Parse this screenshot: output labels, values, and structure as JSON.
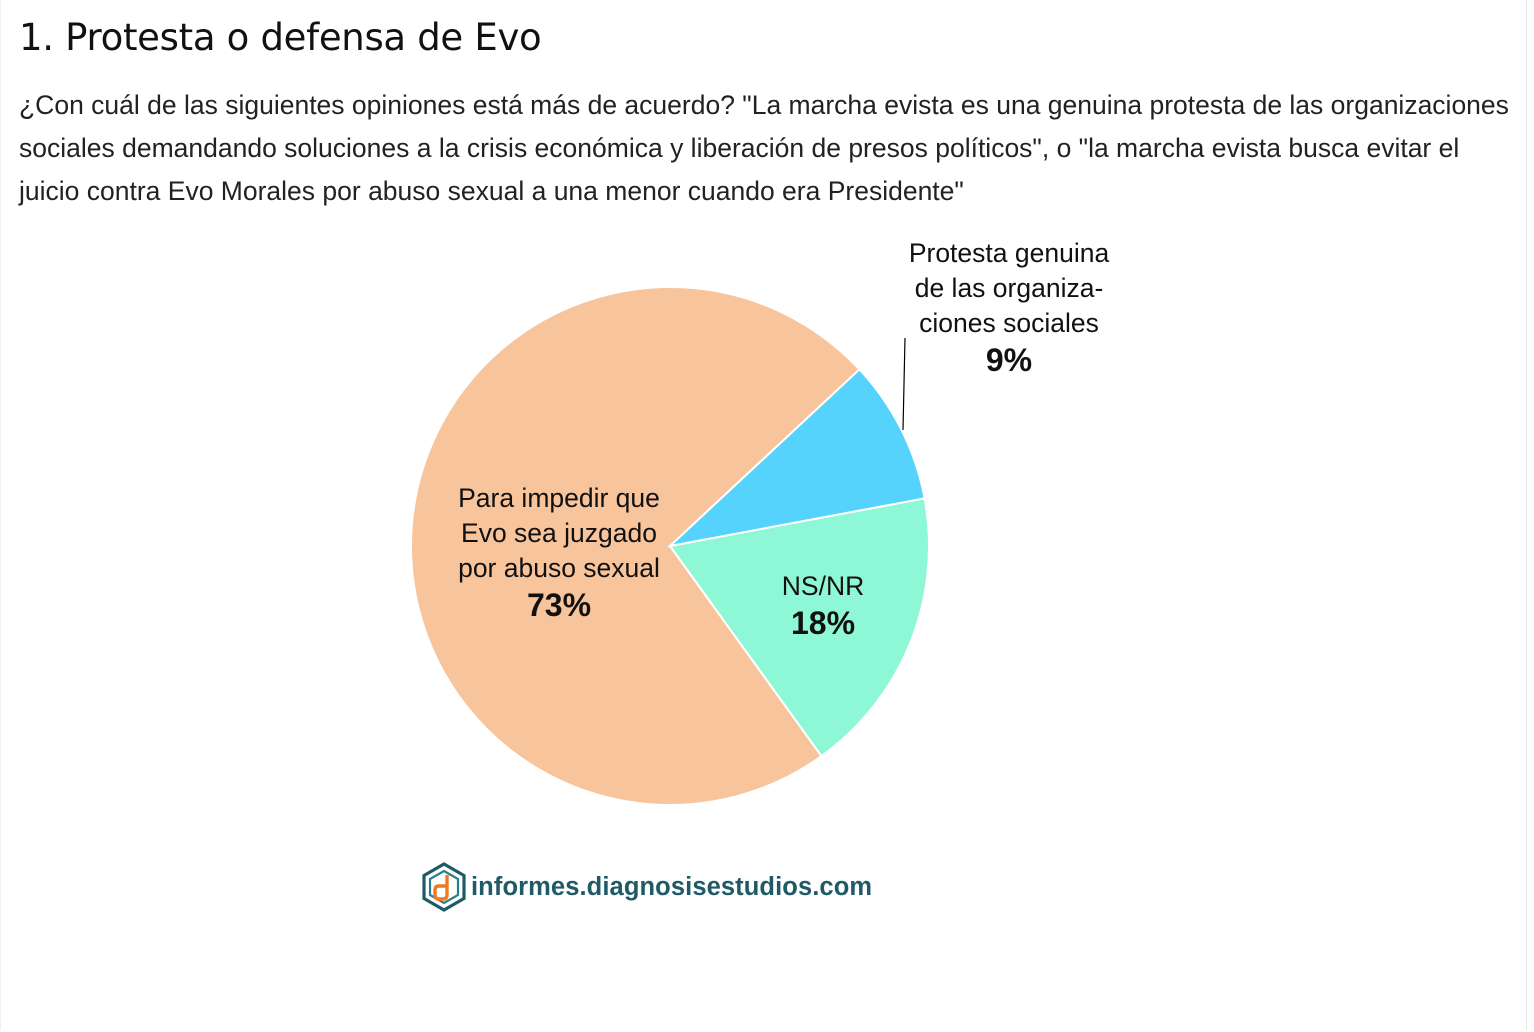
{
  "page": {
    "title": "1. Protesta o defensa de Evo",
    "question": "¿Con cuál de las siguientes opiniones está más de acuerdo? \"La marcha evista es una genuina protesta de las organizaciones sociales demandando soluciones a la crisis económica y liberación de presos políticos\", o \"la marcha evista busca evitar el juicio contra Evo Morales por abuso sexual a una menor cuando era Presidente\""
  },
  "chart_data": {
    "type": "pie",
    "title": "",
    "start_angle_deg": 43,
    "direction": "counterclockwise",
    "slices": [
      {
        "label_lines": [
          "Para impedir que",
          "Evo sea juzgado",
          "por abuso sexual"
        ],
        "value": 73,
        "value_label": "73%",
        "color": "#F8C49C"
      },
      {
        "label_lines": [
          "NS/NR"
        ],
        "value": 18,
        "value_label": "18%",
        "color": "#8EF8D6"
      },
      {
        "label_lines": [
          "Protesta genuina",
          "de las organiza-",
          "ciones sociales"
        ],
        "value": 9,
        "value_label": "9%",
        "color": "#56D3FC"
      }
    ],
    "slice_border_color": "#ffffff",
    "leader_line_color": "#000000"
  },
  "logo": {
    "text": "informes.diagnosisestudios.com",
    "icon": "diagnosis-logo-icon",
    "colors": {
      "teal": "#1f5a66",
      "orange": "#f07a22"
    }
  }
}
